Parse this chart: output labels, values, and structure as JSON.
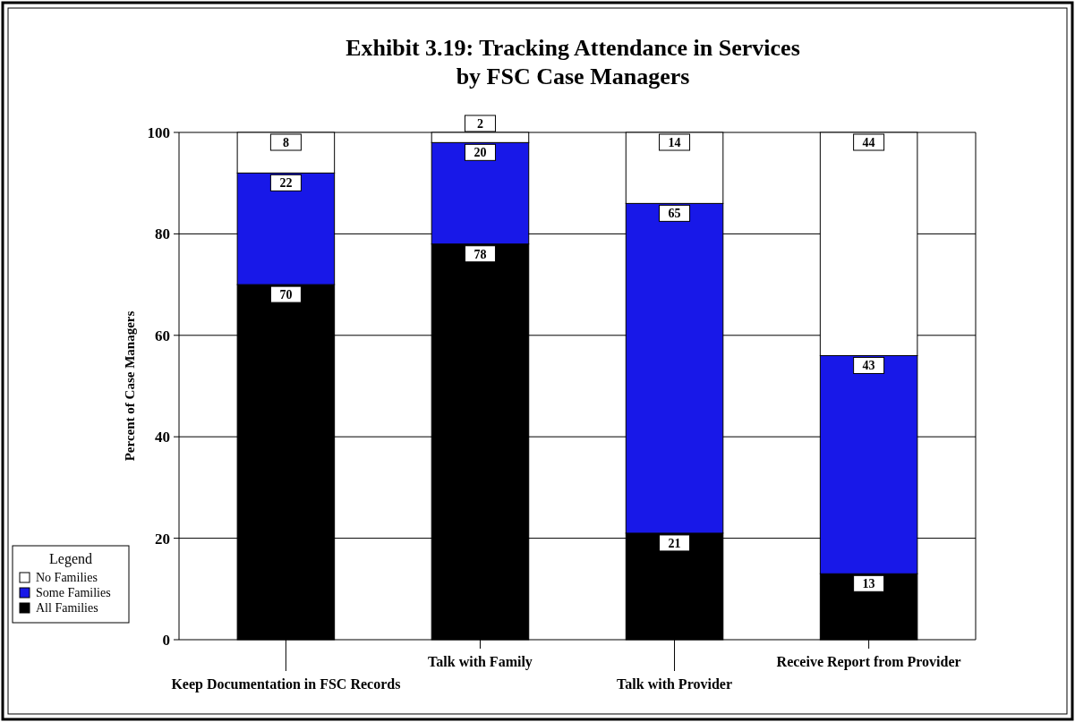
{
  "chart_data": {
    "type": "bar",
    "stacked": true,
    "title": "Exhibit 3.19: Tracking Attendance in Services\nby FSC Case Managers",
    "ylabel": "Percent of Case Managers",
    "legend_title": "Legend",
    "legend": "bottom left",
    "grid": "y",
    "data_labels": true,
    "categories": [
      "Keep Documentation in FSC Records",
      "Talk with Family",
      "Talk with Provider",
      "Receive Report from Provider"
    ],
    "ylim": [
      0,
      100
    ],
    "yticks": [
      0,
      20,
      40,
      60,
      80,
      100
    ],
    "series": [
      {
        "name": "All Families",
        "color": "#000000",
        "values": [
          70,
          78,
          21,
          13
        ]
      },
      {
        "name": "Some Families",
        "color": "#1818e8",
        "values": [
          22,
          20,
          65,
          43
        ]
      },
      {
        "name": "No Families",
        "color": "#ffffff",
        "values": [
          8,
          2,
          14,
          44
        ]
      }
    ]
  }
}
